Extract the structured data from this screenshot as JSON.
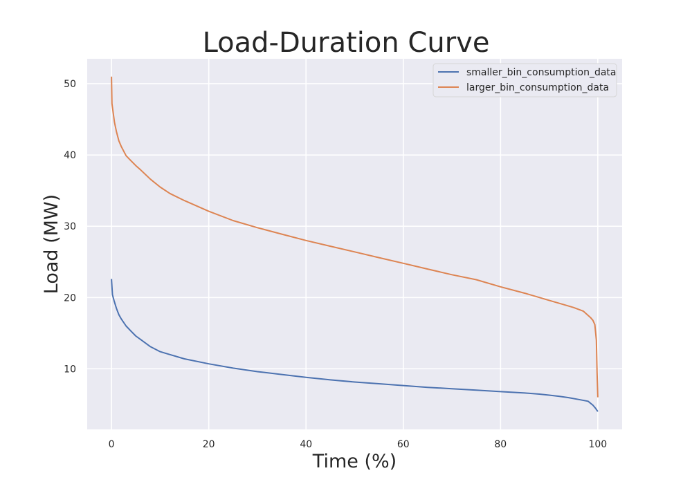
{
  "chart_data": {
    "type": "line",
    "title": "Load-Duration Curve",
    "xlabel": "Time (%)",
    "ylabel": "Load (MW)",
    "xlim": [
      -5,
      105
    ],
    "ylim": [
      1.5,
      53.5
    ],
    "xticks": [
      0,
      20,
      40,
      60,
      80,
      100
    ],
    "yticks": [
      10,
      20,
      30,
      40,
      50
    ],
    "grid": true,
    "legend_position": "top-right",
    "background": "#eaeaf2",
    "series": [
      {
        "name": "smaller_bin_consumption_data",
        "color": "#4c72b0",
        "x": [
          0,
          0.2,
          0.5,
          1,
          1.5,
          2,
          3,
          4,
          5,
          6,
          8,
          10,
          12,
          15,
          20,
          25,
          30,
          35,
          40,
          45,
          50,
          55,
          60,
          65,
          70,
          75,
          80,
          85,
          88,
          90,
          92,
          94,
          96,
          98,
          99,
          99.5,
          100
        ],
        "y": [
          22.6,
          20.4,
          19.6,
          18.5,
          17.6,
          17.0,
          16.0,
          15.3,
          14.6,
          14.1,
          13.1,
          12.4,
          12.0,
          11.4,
          10.7,
          10.1,
          9.6,
          9.2,
          8.8,
          8.45,
          8.15,
          7.9,
          7.65,
          7.4,
          7.2,
          7.0,
          6.8,
          6.6,
          6.45,
          6.3,
          6.15,
          5.95,
          5.7,
          5.45,
          4.9,
          4.5,
          4.0
        ]
      },
      {
        "name": "larger_bin_consumption_data",
        "color": "#dd8452",
        "x": [
          0,
          0.1,
          0.3,
          0.6,
          1,
          1.5,
          2,
          3,
          4,
          5,
          6,
          8,
          10,
          12,
          15,
          20,
          25,
          30,
          35,
          40,
          45,
          50,
          55,
          60,
          65,
          70,
          75,
          80,
          85,
          90,
          93,
          95,
          97,
          98,
          98.5,
          99,
          99.4,
          99.7,
          99.85,
          100
        ],
        "y": [
          51.0,
          47.2,
          46.2,
          44.6,
          43.3,
          42.0,
          41.2,
          39.9,
          39.2,
          38.5,
          37.9,
          36.6,
          35.5,
          34.6,
          33.6,
          32.1,
          30.8,
          29.8,
          28.9,
          28.0,
          27.2,
          26.4,
          25.6,
          24.8,
          24.0,
          23.2,
          22.5,
          21.5,
          20.6,
          19.6,
          19.0,
          18.6,
          18.1,
          17.5,
          17.2,
          16.8,
          16.2,
          14.0,
          9.5,
          6.0
        ]
      }
    ]
  }
}
